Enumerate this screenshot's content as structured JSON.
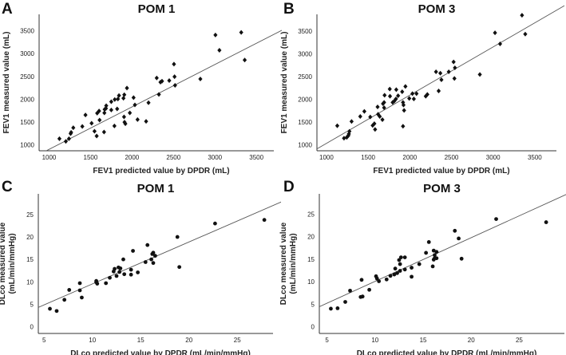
{
  "chart_data": [
    {
      "panel": "A",
      "type": "scatter",
      "title": "POM 1",
      "marker": "diamond",
      "xlabel": "FEV1 predicted value by DPDR (mL)",
      "ylabel": [
        "FEV1 measured value (mL)"
      ],
      "xlim": [
        880,
        3710
      ],
      "ylim": [
        870,
        3860
      ],
      "xticks": [
        1000,
        1500,
        2000,
        2500,
        3000,
        3500
      ],
      "yticks": [
        1000,
        1500,
        2000,
        2500,
        3000,
        3500
      ],
      "fit": {
        "slope": 0.93,
        "intercept": -29
      },
      "points": [
        [
          1125,
          1134
        ],
        [
          1202,
          1076
        ],
        [
          1240,
          1134
        ],
        [
          1260,
          1245
        ],
        [
          1266,
          1275
        ],
        [
          1292,
          1374
        ],
        [
          1401,
          1403
        ],
        [
          1439,
          1654
        ],
        [
          1513,
          1473
        ],
        [
          1548,
          1298
        ],
        [
          1574,
          1193
        ],
        [
          1580,
          1695
        ],
        [
          1603,
          1742
        ],
        [
          1609,
          1543
        ],
        [
          1663,
          1280
        ],
        [
          1667,
          1701
        ],
        [
          1670,
          1777
        ],
        [
          1686,
          1800
        ],
        [
          1689,
          1859
        ],
        [
          1750,
          1946
        ],
        [
          1750,
          1765
        ],
        [
          1788,
          1415
        ],
        [
          1792,
          1993
        ],
        [
          1821,
          1789
        ],
        [
          1830,
          2005
        ],
        [
          1843,
          2081
        ],
        [
          1897,
          2022
        ],
        [
          1907,
          2098
        ],
        [
          1904,
          1613
        ],
        [
          1910,
          1497
        ],
        [
          1920,
          1462
        ],
        [
          1939,
          2244
        ],
        [
          1974,
          1701
        ],
        [
          2019,
          2034
        ],
        [
          2035,
          1876
        ],
        [
          2067,
          1555
        ],
        [
          2170,
          1514
        ],
        [
          2199,
          1923
        ],
        [
          2298,
          2466
        ],
        [
          2324,
          2104
        ],
        [
          2343,
          2373
        ],
        [
          2362,
          2396
        ],
        [
          2449,
          2408
        ],
        [
          2506,
          2770
        ],
        [
          2513,
          2495
        ],
        [
          2519,
          2303
        ],
        [
          2824,
          2443
        ],
        [
          3006,
          3407
        ],
        [
          3054,
          3074
        ],
        [
          3317,
          3465
        ],
        [
          3359,
          2858
        ]
      ]
    },
    {
      "panel": "B",
      "type": "scatter",
      "title": "POM 3",
      "marker": "diamond",
      "xlabel": "FEV1 predicted value by DPDR (mL)",
      "ylabel": [
        "FEV1 measured value (mL)"
      ],
      "xlim": [
        886,
        3760
      ],
      "ylim": [
        870,
        3870
      ],
      "xticks": [
        1000,
        1500,
        2000,
        2500,
        3000,
        3500
      ],
      "yticks": [
        1000,
        1500,
        2000,
        2500,
        3000,
        3500
      ],
      "fit": {
        "slope": 1.06,
        "intercept": -27
      },
      "points": [
        [
          1130,
          1421
        ],
        [
          1211,
          1146
        ],
        [
          1244,
          1164
        ],
        [
          1263,
          1204
        ],
        [
          1269,
          1240
        ],
        [
          1276,
          1298
        ],
        [
          1302,
          1514
        ],
        [
          1406,
          1625
        ],
        [
          1455,
          1736
        ],
        [
          1526,
          1613
        ],
        [
          1555,
          1426
        ],
        [
          1575,
          1467
        ],
        [
          1584,
          1339
        ],
        [
          1614,
          1835
        ],
        [
          1620,
          1672
        ],
        [
          1640,
          1625
        ],
        [
          1672,
          1555
        ],
        [
          1679,
          1905
        ],
        [
          1692,
          1818
        ],
        [
          1698,
          2092
        ],
        [
          1692,
          1934
        ],
        [
          1760,
          2227
        ],
        [
          1763,
          2069
        ],
        [
          1795,
          1934
        ],
        [
          1815,
          1964
        ],
        [
          1834,
          2011
        ],
        [
          1838,
          2215
        ],
        [
          1860,
          2081
        ],
        [
          1909,
          2168
        ],
        [
          1919,
          1934
        ],
        [
          1925,
          1876
        ],
        [
          1932,
          1759
        ],
        [
          1919,
          1409
        ],
        [
          1948,
          2285
        ],
        [
          1994,
          2022
        ],
        [
          2032,
          2127
        ],
        [
          2049,
          2011
        ],
        [
          2081,
          2127
        ],
        [
          2192,
          2069
        ],
        [
          2211,
          2110
        ],
        [
          2315,
          2606
        ],
        [
          2347,
          2186
        ],
        [
          2367,
          2577
        ],
        [
          2380,
          2431
        ],
        [
          2468,
          2606
        ],
        [
          2526,
          2823
        ],
        [
          2536,
          2460
        ],
        [
          2542,
          2694
        ],
        [
          2841,
          2548
        ],
        [
          3023,
          3465
        ],
        [
          3084,
          3220
        ],
        [
          3347,
          3851
        ],
        [
          3386,
          3436
        ]
      ]
    },
    {
      "panel": "C",
      "type": "scatter",
      "title": "POM 1",
      "marker": "circle",
      "xlabel": "DLco predicted value by DPDR (mL/min/mmHg)",
      "ylabel": [
        "DLco measured value",
        "(mL/min/mmHg)"
      ],
      "xlim": [
        4.4,
        28.7
      ],
      "ylim": [
        -1.5,
        29.6
      ],
      "xticks": [
        5,
        10,
        15,
        20,
        25
      ],
      "yticks": [
        0,
        5,
        10,
        15,
        20,
        25
      ],
      "fit": {
        "slope": 0.934,
        "intercept": 0.2
      },
      "points": [
        [
          5.6,
          4.0
        ],
        [
          6.3,
          3.5
        ],
        [
          7.1,
          6.0
        ],
        [
          7.6,
          8.2
        ],
        [
          8.7,
          9.7
        ],
        [
          8.7,
          8.1
        ],
        [
          8.9,
          6.5
        ],
        [
          10.4,
          10.2
        ],
        [
          10.4,
          9.9
        ],
        [
          10.5,
          9.6
        ],
        [
          11.4,
          9.7
        ],
        [
          11.8,
          10.9
        ],
        [
          12.2,
          12.3
        ],
        [
          12.3,
          12.9
        ],
        [
          12.5,
          11.3
        ],
        [
          12.7,
          13.2
        ],
        [
          12.8,
          12.2
        ],
        [
          12.9,
          13.0
        ],
        [
          13.2,
          15.0
        ],
        [
          13.3,
          11.7
        ],
        [
          14.0,
          11.6
        ],
        [
          14.0,
          12.7
        ],
        [
          14.2,
          16.9
        ],
        [
          14.7,
          12.1
        ],
        [
          15.5,
          14.4
        ],
        [
          15.7,
          18.2
        ],
        [
          16.1,
          15.0
        ],
        [
          16.2,
          16.2
        ],
        [
          16.3,
          16.5
        ],
        [
          16.3,
          14.2
        ],
        [
          16.5,
          15.8
        ],
        [
          18.8,
          20.0
        ],
        [
          19.0,
          13.3
        ],
        [
          22.7,
          23.0
        ],
        [
          27.8,
          23.8
        ]
      ]
    },
    {
      "panel": "D",
      "type": "scatter",
      "title": "POM 3",
      "marker": "circle",
      "xlabel": "DLco predicted value by DPDR (mL/min/mmHg)",
      "ylabel": [
        "DLco measured value",
        "(mL/min/mmHg)"
      ],
      "xlim": [
        4.2,
        29.7
      ],
      "ylim": [
        -1.5,
        29.5
      ],
      "xticks": [
        5,
        10,
        15,
        20,
        25
      ],
      "yticks": [
        0,
        5,
        10,
        15,
        20,
        25
      ],
      "fit": {
        "slope": 0.97,
        "intercept": 0.37
      },
      "points": [
        [
          5.4,
          4.0
        ],
        [
          6.1,
          4.1
        ],
        [
          6.9,
          5.5
        ],
        [
          7.4,
          8.0
        ],
        [
          8.5,
          6.6
        ],
        [
          8.6,
          10.4
        ],
        [
          8.7,
          6.7
        ],
        [
          9.4,
          8.2
        ],
        [
          10.1,
          11.2
        ],
        [
          10.2,
          10.7
        ],
        [
          10.4,
          10.1
        ],
        [
          11.2,
          10.5
        ],
        [
          11.6,
          11.3
        ],
        [
          12.0,
          11.6
        ],
        [
          12.1,
          12.9
        ],
        [
          12.3,
          11.9
        ],
        [
          12.5,
          14.8
        ],
        [
          12.6,
          12.4
        ],
        [
          12.6,
          13.9
        ],
        [
          12.7,
          15.4
        ],
        [
          13.1,
          15.4
        ],
        [
          13.1,
          12.7
        ],
        [
          13.8,
          11.1
        ],
        [
          13.8,
          13.1
        ],
        [
          14.6,
          13.9
        ],
        [
          15.3,
          16.4
        ],
        [
          15.6,
          18.8
        ],
        [
          16.0,
          13.4
        ],
        [
          16.1,
          14.9
        ],
        [
          16.1,
          16.9
        ],
        [
          16.2,
          15.9
        ],
        [
          16.2,
          15.2
        ],
        [
          16.4,
          16.6
        ],
        [
          16.4,
          15.2
        ],
        [
          18.3,
          21.3
        ],
        [
          18.7,
          19.6
        ],
        [
          19.0,
          15.1
        ],
        [
          22.6,
          23.9
        ],
        [
          27.8,
          23.2
        ]
      ]
    }
  ]
}
